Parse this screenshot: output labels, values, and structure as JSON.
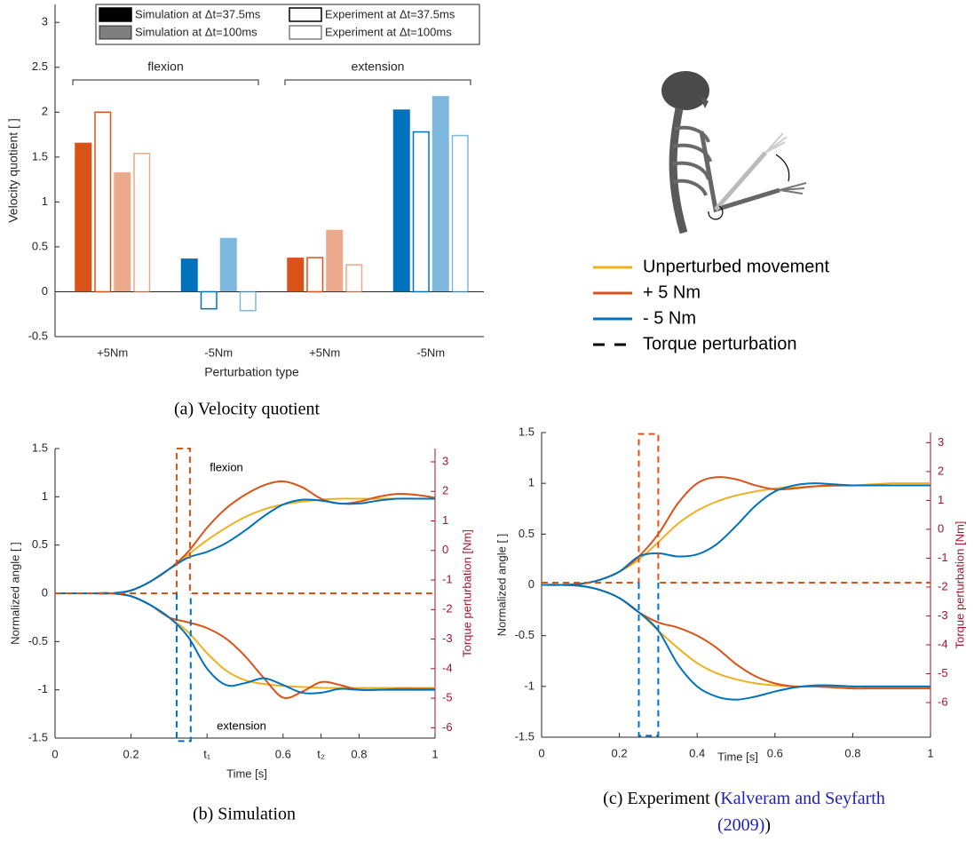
{
  "chart_data": [
    {
      "type": "bar",
      "ylabel": "Velocity quotient [ ]",
      "xlabel": "Perturbation type",
      "caption": "(a) Velocity quotient",
      "categories": [
        "+5Nm",
        "-5Nm",
        "+5Nm",
        "-5Nm"
      ],
      "groups": [
        "flexion",
        "extension"
      ],
      "category_colors": [
        "#d95319",
        "#0072bd",
        "#d95319",
        "#0072bd"
      ],
      "series": [
        {
          "name": "Simulation at Δt=37.5ms",
          "filled": true,
          "opacity": 1,
          "values": [
            1.66,
            0.37,
            0.38,
            2.03
          ]
        },
        {
          "name": "Experiment at Δt=37.5ms",
          "filled": false,
          "opacity": 1,
          "values": [
            2.0,
            -0.19,
            0.38,
            1.78
          ]
        },
        {
          "name": "Simulation at Δt=100ms",
          "filled": true,
          "opacity": 0.5,
          "values": [
            1.33,
            0.6,
            0.69,
            2.18
          ]
        },
        {
          "name": "Experiment at Δt=100ms",
          "filled": false,
          "opacity": 0.5,
          "values": [
            1.54,
            -0.21,
            0.3,
            1.74
          ]
        }
      ],
      "ylim": [
        -0.5,
        3.2
      ],
      "yticks": [
        -0.5,
        0,
        0.5,
        1,
        1.5,
        2,
        2.5,
        3
      ],
      "grid": false
    },
    {
      "type": "line",
      "ylabel": "Normalized angle [ ]",
      "y2label": "Torque perturbation [Nm]",
      "xlabel": "Time [s]",
      "caption": "(b) Simulation",
      "annotations": [
        "flexion",
        "extension"
      ],
      "y2color": "#a2142f",
      "x": [
        0,
        0.05,
        0.1,
        0.15,
        0.2,
        0.25,
        0.3,
        0.35,
        0.4,
        0.45,
        0.5,
        0.55,
        0.6,
        0.65,
        0.7,
        0.75,
        0.8,
        0.85,
        0.9,
        0.95,
        1
      ],
      "series": [
        {
          "color": "#edb120",
          "values": [
            0,
            0,
            0,
            0,
            0.03,
            0.12,
            0.25,
            0.4,
            0.55,
            0.68,
            0.79,
            0.87,
            0.92,
            0.95,
            0.97,
            0.98,
            0.98,
            0.98,
            0.98,
            0.98,
            0.98
          ]
        },
        {
          "color": "#d95319",
          "values": [
            0,
            0,
            0,
            0,
            0.03,
            0.12,
            0.25,
            0.43,
            0.68,
            0.88,
            1.02,
            1.12,
            1.16,
            1.1,
            0.98,
            0.93,
            0.95,
            1.0,
            1.03,
            1.02,
            0.99
          ]
        },
        {
          "color": "#0072bd",
          "values": [
            0,
            0,
            0,
            0,
            0.03,
            0.12,
            0.25,
            0.37,
            0.43,
            0.52,
            0.65,
            0.8,
            0.92,
            0.97,
            0.96,
            0.93,
            0.93,
            0.96,
            0.98,
            0.98,
            0.98
          ]
        },
        {
          "color": "#edb120",
          "values": [
            0,
            0,
            0,
            0,
            -0.03,
            -0.12,
            -0.25,
            -0.4,
            -0.62,
            -0.8,
            -0.9,
            -0.94,
            -0.96,
            -0.97,
            -0.98,
            -0.98,
            -0.98,
            -0.98,
            -0.98,
            -0.98,
            -0.98
          ]
        },
        {
          "color": "#d95319",
          "values": [
            0,
            0,
            0,
            0,
            -0.03,
            -0.12,
            -0.25,
            -0.3,
            -0.36,
            -0.47,
            -0.65,
            -0.88,
            -1.08,
            -1.02,
            -0.92,
            -0.95,
            -1.0,
            -1.0,
            -0.99,
            -0.99,
            -0.99
          ]
        },
        {
          "color": "#0072bd",
          "values": [
            0,
            0,
            0,
            0,
            -0.03,
            -0.12,
            -0.25,
            -0.45,
            -0.78,
            -0.95,
            -0.93,
            -0.88,
            -0.95,
            -1.03,
            -1.03,
            -0.99,
            -1.0,
            -1.0,
            -1.0,
            -1.0,
            -1.0
          ]
        },
        {
          "color": "#d95319",
          "dash": true,
          "axis": "y2",
          "x": [
            0,
            0.32,
            0.32,
            0.355,
            0.355,
            1
          ],
          "values": [
            -1.45,
            -1.45,
            3.45,
            3.45,
            -1.45,
            -1.45
          ]
        },
        {
          "color": "#0072bd",
          "dash": true,
          "axis": "y2",
          "x": [
            0.32,
            0.32,
            0.357,
            0.357
          ],
          "values": [
            -1.45,
            -6.45,
            -6.45,
            -1.45
          ]
        }
      ],
      "xlim": [
        0,
        1
      ],
      "xticks": [
        0,
        0.2,
        {
          "value": 0.4,
          "label": "t₁"
        },
        0.6,
        {
          "value": 0.7,
          "label": "t₂"
        },
        0.8,
        1
      ],
      "ylim": [
        -1.5,
        1.5
      ],
      "yticks": [
        -1.5,
        -1,
        -0.5,
        0,
        0.5,
        1,
        1.5
      ],
      "y2lim": [
        -6.35,
        3.45
      ],
      "y2ticks": [
        -6,
        -5,
        -4,
        -3,
        -2,
        -1,
        0,
        1,
        2,
        3
      ],
      "grid": false
    },
    {
      "type": "line",
      "ylabel": "Normalized angle [ ]",
      "y2label": "Torque perturbation [Nm]",
      "xlabel": "Time [s]",
      "caption_parts": [
        "(c) Experiment (",
        "Kalveram and Seyfarth",
        "(2009)",
        ")"
      ],
      "y2color": "#a2142f",
      "x": [
        0,
        0.05,
        0.1,
        0.15,
        0.2,
        0.25,
        0.3,
        0.35,
        0.4,
        0.45,
        0.5,
        0.55,
        0.6,
        0.65,
        0.7,
        0.75,
        0.8,
        0.85,
        0.9,
        0.95,
        1
      ],
      "series": [
        {
          "color": "#edb120",
          "values": [
            0,
            0,
            0.01,
            0.05,
            0.13,
            0.25,
            0.42,
            0.6,
            0.73,
            0.82,
            0.88,
            0.92,
            0.95,
            0.96,
            0.97,
            0.975,
            0.98,
            0.99,
            1.0,
            1.0,
            1.0
          ]
        },
        {
          "color": "#d95319",
          "values": [
            0,
            0,
            0.01,
            0.05,
            0.13,
            0.28,
            0.5,
            0.8,
            1.0,
            1.06,
            1.04,
            0.98,
            0.94,
            0.95,
            0.97,
            0.98,
            0.98,
            0.98,
            0.98,
            0.98,
            0.98
          ]
        },
        {
          "color": "#0072bd",
          "values": [
            0,
            0,
            0.01,
            0.05,
            0.13,
            0.28,
            0.31,
            0.28,
            0.3,
            0.4,
            0.58,
            0.78,
            0.92,
            0.98,
            1.0,
            0.99,
            0.98,
            0.98,
            0.98,
            0.98,
            0.98
          ]
        },
        {
          "color": "#edb120",
          "values": [
            0,
            0,
            -0.01,
            -0.05,
            -0.13,
            -0.27,
            -0.45,
            -0.62,
            -0.77,
            -0.87,
            -0.93,
            -0.97,
            -0.99,
            -1.0,
            -1.0,
            -1.0,
            -1.0,
            -1.0,
            -1.0,
            -1.0,
            -1.0
          ]
        },
        {
          "color": "#d95319",
          "values": [
            0,
            0,
            -0.01,
            -0.05,
            -0.13,
            -0.27,
            -0.37,
            -0.42,
            -0.5,
            -0.62,
            -0.78,
            -0.9,
            -0.97,
            -1.0,
            -1.0,
            -1.01,
            -1.02,
            -1.02,
            -1.02,
            -1.02,
            -1.02
          ]
        },
        {
          "color": "#0072bd",
          "values": [
            0,
            0,
            -0.01,
            -0.05,
            -0.13,
            -0.27,
            -0.45,
            -0.78,
            -1.0,
            -1.1,
            -1.13,
            -1.1,
            -1.05,
            -1.01,
            -0.99,
            -0.99,
            -1.0,
            -1.0,
            -1.0,
            -1.0,
            -1.0
          ]
        },
        {
          "color": "#d95319",
          "dash": true,
          "axis": "y2",
          "x": [
            0,
            0.25,
            0.25,
            0.3,
            0.3,
            1
          ],
          "values": [
            -1.85,
            -1.85,
            3.3,
            3.3,
            -1.85,
            -1.85
          ]
        },
        {
          "color": "#0072bd",
          "dash": true,
          "axis": "y2",
          "x": [
            0.25,
            0.25,
            0.3,
            0.3
          ],
          "values": [
            -1.85,
            -7.15,
            -7.15,
            -1.85
          ]
        }
      ],
      "xlim": [
        0,
        1
      ],
      "xticks": [
        0,
        0.2,
        0.4,
        0.6,
        0.8,
        1
      ],
      "ylim": [
        -1.5,
        1.5
      ],
      "yticks": [
        -1.5,
        -1,
        -0.5,
        0,
        0.5,
        1,
        1.5
      ],
      "y2lim": [
        -7.2,
        3.35
      ],
      "y2ticks": [
        -6,
        -5,
        -4,
        -3,
        -2,
        -1,
        0,
        1,
        2,
        3
      ],
      "grid": false
    }
  ],
  "legend": {
    "entries": [
      {
        "name": "Unperturbed movement",
        "color": "#edb120"
      },
      {
        "name": "+ 5 Nm",
        "color": "#d95319"
      },
      {
        "name": "- 5 Nm",
        "color": "#0072bd"
      },
      {
        "name": "Torque perturbation",
        "color": "#000000",
        "dash": true
      }
    ]
  }
}
